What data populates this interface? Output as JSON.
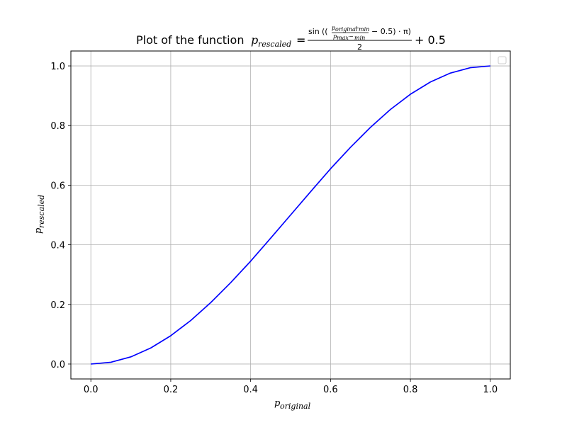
{
  "chart_data": {
    "type": "line",
    "title": {
      "prefix": "Plot of the function",
      "lhs_base": "p",
      "lhs_sub": "rescaled",
      "eq": "=",
      "num_sin": "sin",
      "num_open": "((",
      "frac_num_base": "p",
      "frac_num_sub_a": "original",
      "frac_num_minus": "−",
      "frac_num_sub_b": "min",
      "frac_den_base": "p",
      "frac_den_sub_a": "max",
      "frac_den_minus": "−",
      "frac_den_sub_b": "min",
      "num_tail": "− 0.5) · π)",
      "denominator": "2",
      "tail": "+ 0.5"
    },
    "xlabel": {
      "base": "p",
      "sub": "original"
    },
    "ylabel": {
      "base": "p",
      "sub": "rescaled"
    },
    "xlim": [
      -0.05,
      1.05
    ],
    "ylim": [
      -0.05,
      1.05
    ],
    "xticks": [
      0.0,
      0.2,
      0.4,
      0.6,
      0.8,
      1.0
    ],
    "yticks": [
      0.0,
      0.2,
      0.4,
      0.6,
      0.8,
      1.0
    ],
    "xtick_labels": [
      "0.0",
      "0.2",
      "0.4",
      "0.6",
      "0.8",
      "1.0"
    ],
    "ytick_labels": [
      "0.0",
      "0.2",
      "0.4",
      "0.6",
      "0.8",
      "1.0"
    ],
    "grid": true,
    "legend": {
      "position": "top-right",
      "entries": []
    },
    "series": [
      {
        "color": "#0000ff",
        "x": [
          0.0,
          0.05,
          0.1,
          0.15,
          0.2,
          0.25,
          0.3,
          0.35,
          0.4,
          0.45,
          0.5,
          0.55,
          0.6,
          0.65,
          0.7,
          0.75,
          0.8,
          0.85,
          0.9,
          0.95,
          1.0
        ],
        "y": [
          0.0,
          0.006,
          0.024,
          0.054,
          0.095,
          0.146,
          0.206,
          0.273,
          0.345,
          0.422,
          0.5,
          0.578,
          0.655,
          0.727,
          0.794,
          0.854,
          0.905,
          0.946,
          0.976,
          0.994,
          1.0
        ]
      }
    ]
  }
}
